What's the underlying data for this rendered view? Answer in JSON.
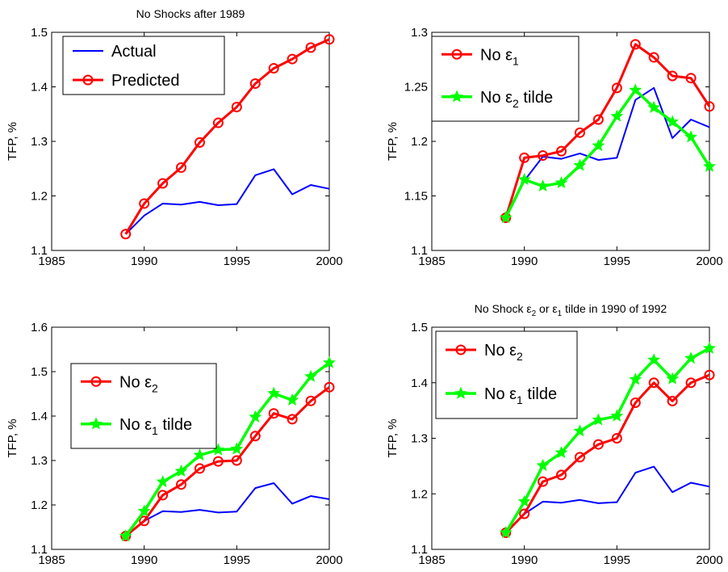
{
  "colors": {
    "actual": "#0000ff",
    "red": "#ff0000",
    "green": "#00ff00"
  },
  "chart_data": [
    {
      "type": "line",
      "title": "No Shocks after 1989",
      "ylabel": "TFP, %",
      "xlabel": "",
      "xlim": [
        1985,
        2000
      ],
      "ylim": [
        1.1,
        1.5
      ],
      "xticks": [
        "1985",
        "1990",
        "1995",
        "2000"
      ],
      "yticks": [
        "1.1",
        "1.2",
        "1.3",
        "1.4",
        "1.5"
      ],
      "legend_position": "top-left",
      "x": [
        1989,
        1990,
        1991,
        1992,
        1993,
        1994,
        1995,
        1996,
        1997,
        1998,
        1999,
        2000
      ],
      "series": [
        {
          "name": "Actual",
          "style": "actual",
          "values": [
            1.13,
            1.164,
            1.186,
            1.184,
            1.189,
            1.183,
            1.185,
            1.238,
            1.249,
            1.203,
            1.22,
            1.213
          ]
        },
        {
          "name": "Predicted",
          "style": "red-circle",
          "values": [
            1.13,
            1.186,
            1.223,
            1.252,
            1.298,
            1.334,
            1.363,
            1.406,
            1.434,
            1.451,
            1.472,
            1.487
          ]
        }
      ]
    },
    {
      "type": "line",
      "title": "",
      "ylabel": "TFP, %",
      "xlabel": "",
      "xlim": [
        1985,
        2000
      ],
      "ylim": [
        1.1,
        1.3
      ],
      "xticks": [
        "1985",
        "1990",
        "1995",
        "2000"
      ],
      "yticks": [
        "1.1",
        "1.15",
        "1.2",
        "1.25",
        "1.3"
      ],
      "legend_position": "top-left",
      "x": [
        1989,
        1990,
        1991,
        1992,
        1993,
        1994,
        1995,
        1996,
        1997,
        1998,
        1999,
        2000
      ],
      "series": [
        {
          "style": "actual",
          "values": [
            1.13,
            1.164,
            1.186,
            1.184,
            1.189,
            1.183,
            1.185,
            1.238,
            1.249,
            1.203,
            1.22,
            1.213
          ]
        },
        {
          "name": "No ε1",
          "legend_main": "No ε",
          "legend_sub": "1",
          "style": "red-circle",
          "values": [
            1.13,
            1.185,
            1.187,
            1.191,
            1.208,
            1.22,
            1.249,
            1.289,
            1.277,
            1.26,
            1.258,
            1.232
          ]
        },
        {
          "name": "No ε2 tilde",
          "legend_main": "No ε",
          "legend_sub": "2",
          "legend_tail": " tilde",
          "style": "green-star",
          "values": [
            1.13,
            1.165,
            1.159,
            1.162,
            1.178,
            1.196,
            1.223,
            1.247,
            1.231,
            1.218,
            1.204,
            1.177
          ]
        }
      ]
    },
    {
      "type": "line",
      "title": "",
      "ylabel": "TFP, %",
      "xlabel": "",
      "xlim": [
        1985,
        2000
      ],
      "ylim": [
        1.1,
        1.6
      ],
      "xticks": [
        "1985",
        "1990",
        "1995",
        "2000"
      ],
      "yticks": [
        "1.1",
        "1.2",
        "1.3",
        "1.4",
        "1.5",
        "1.6"
      ],
      "legend_position": "top-left",
      "x": [
        1989,
        1990,
        1991,
        1992,
        1993,
        1994,
        1995,
        1996,
        1997,
        1998,
        1999,
        2000
      ],
      "series": [
        {
          "style": "actual",
          "values": [
            1.13,
            1.164,
            1.186,
            1.184,
            1.189,
            1.183,
            1.185,
            1.238,
            1.249,
            1.203,
            1.22,
            1.213
          ]
        },
        {
          "name": "No ε2",
          "legend_main": "No ε",
          "legend_sub": "2",
          "style": "red-circle",
          "values": [
            1.13,
            1.164,
            1.222,
            1.246,
            1.282,
            1.298,
            1.3,
            1.355,
            1.406,
            1.393,
            1.434,
            1.465
          ]
        },
        {
          "name": "No ε1 tilde",
          "legend_main": "No ε",
          "legend_sub": "1",
          "legend_tail": " tilde",
          "style": "green-star",
          "values": [
            1.13,
            1.186,
            1.252,
            1.276,
            1.312,
            1.324,
            1.326,
            1.398,
            1.451,
            1.436,
            1.489,
            1.52
          ]
        }
      ]
    },
    {
      "type": "line",
      "title": "No Shock ε2 or ε1 tilde in 1990 of 1992",
      "title_parts": [
        "No Shock ε",
        "2",
        " or ε",
        "1",
        " tilde in 1990 of 1992"
      ],
      "ylabel": "TFP, %",
      "xlabel": "",
      "xlim": [
        1985,
        2000
      ],
      "ylim": [
        1.1,
        1.5
      ],
      "xticks": [
        "1985",
        "1990",
        "1995",
        "2000"
      ],
      "yticks": [
        "1.1",
        "1.2",
        "1.3",
        "1.4",
        "1.5"
      ],
      "legend_position": "top-left",
      "x": [
        1989,
        1990,
        1991,
        1992,
        1993,
        1994,
        1995,
        1996,
        1997,
        1998,
        1999,
        2000
      ],
      "series": [
        {
          "style": "actual",
          "values": [
            1.13,
            1.164,
            1.186,
            1.184,
            1.189,
            1.183,
            1.185,
            1.238,
            1.249,
            1.203,
            1.22,
            1.213
          ]
        },
        {
          "name": "No ε2",
          "legend_main": "No ε",
          "legend_sub": "2",
          "style": "red-circle",
          "values": [
            1.13,
            1.164,
            1.222,
            1.234,
            1.266,
            1.289,
            1.3,
            1.364,
            1.4,
            1.367,
            1.4,
            1.414
          ]
        },
        {
          "name": "No ε1 tilde",
          "legend_main": "No ε",
          "legend_sub": "1",
          "legend_tail": " tilde",
          "style": "green-star",
          "values": [
            1.13,
            1.186,
            1.251,
            1.274,
            1.313,
            1.333,
            1.34,
            1.406,
            1.441,
            1.407,
            1.444,
            1.462
          ]
        }
      ]
    }
  ]
}
